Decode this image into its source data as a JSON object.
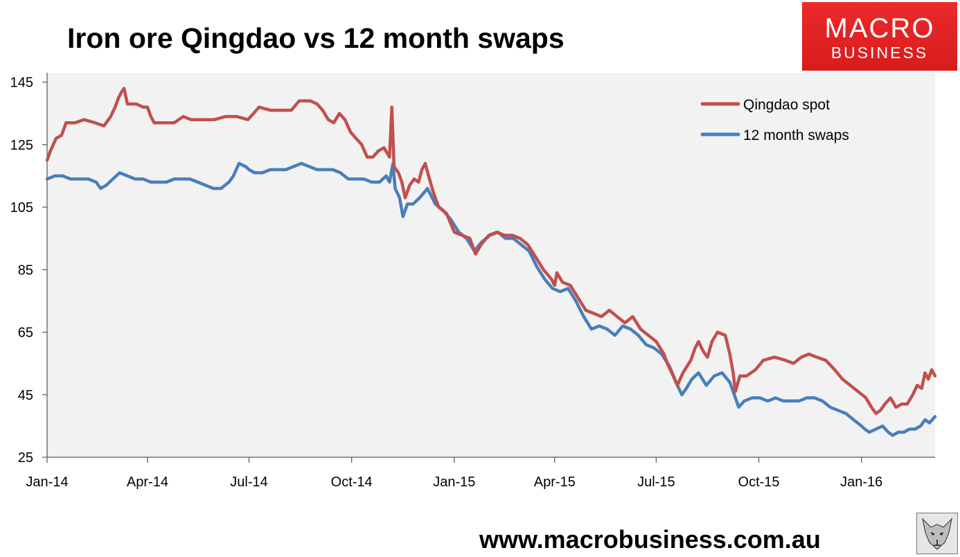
{
  "title": "Iron ore Qingdao vs 12 month swaps",
  "logo": {
    "top": "MACRO",
    "bottom": "BUSINESS",
    "color": "#e02323"
  },
  "website": "www.macrobusiness.com.au",
  "wolf_icon": "wolf-face-icon",
  "chart_data": {
    "type": "line",
    "title": "Iron ore Qingdao vs 12 month swaps",
    "xlabel": "",
    "ylabel": "",
    "x_start": "2014-01-01",
    "x_end": "2016-03-07",
    "x_ticks": [
      "Jan-14",
      "Apr-14",
      "Jul-14",
      "Oct-14",
      "Jan-15",
      "Apr-15",
      "Jul-15",
      "Oct-15",
      "Jan-16"
    ],
    "x_tick_dates": [
      "2014-01-01",
      "2014-04-01",
      "2014-07-01",
      "2014-10-01",
      "2015-01-01",
      "2015-04-01",
      "2015-07-01",
      "2015-10-01",
      "2016-01-01"
    ],
    "y_ticks": [
      25,
      45,
      65,
      85,
      105,
      125,
      145
    ],
    "ylim": [
      25,
      148
    ],
    "grid": false,
    "legend_position": "top-right",
    "background": "#f2f2f2",
    "series": [
      {
        "name": "Qingdao spot",
        "color": "#c0504d",
        "points": [
          [
            "2014-01-01",
            120
          ],
          [
            "2014-01-04",
            123
          ],
          [
            "2014-01-09",
            127
          ],
          [
            "2014-01-14",
            128
          ],
          [
            "2014-01-18",
            132
          ],
          [
            "2014-01-26",
            132
          ],
          [
            "2014-02-03",
            133
          ],
          [
            "2014-02-13",
            132
          ],
          [
            "2014-02-21",
            131
          ],
          [
            "2014-02-27",
            134
          ],
          [
            "2014-03-03",
            137
          ],
          [
            "2014-03-06",
            140
          ],
          [
            "2014-03-09",
            142
          ],
          [
            "2014-03-11",
            143
          ],
          [
            "2014-03-14",
            138
          ],
          [
            "2014-03-22",
            138
          ],
          [
            "2014-03-28",
            137
          ],
          [
            "2014-04-01",
            137
          ],
          [
            "2014-04-04",
            134
          ],
          [
            "2014-04-07",
            132
          ],
          [
            "2014-04-15",
            132
          ],
          [
            "2014-04-25",
            132
          ],
          [
            "2014-05-03",
            134
          ],
          [
            "2014-05-10",
            133
          ],
          [
            "2014-05-20",
            133
          ],
          [
            "2014-05-31",
            133
          ],
          [
            "2014-06-10",
            134
          ],
          [
            "2014-06-20",
            134
          ],
          [
            "2014-06-30",
            133
          ],
          [
            "2014-07-05",
            135
          ],
          [
            "2014-07-10",
            137
          ],
          [
            "2014-07-20",
            136
          ],
          [
            "2014-07-31",
            136
          ],
          [
            "2014-08-08",
            136
          ],
          [
            "2014-08-15",
            139
          ],
          [
            "2014-08-25",
            139
          ],
          [
            "2014-08-31",
            138
          ],
          [
            "2014-09-05",
            136
          ],
          [
            "2014-09-10",
            133
          ],
          [
            "2014-09-15",
            132
          ],
          [
            "2014-09-20",
            135
          ],
          [
            "2014-09-25",
            133
          ],
          [
            "2014-09-30",
            129
          ],
          [
            "2014-10-05",
            127
          ],
          [
            "2014-10-10",
            125
          ],
          [
            "2014-10-15",
            121
          ],
          [
            "2014-10-20",
            121
          ],
          [
            "2014-10-25",
            123
          ],
          [
            "2014-10-30",
            124
          ],
          [
            "2014-11-04",
            121
          ],
          [
            "2014-11-06",
            137
          ],
          [
            "2014-11-08",
            118
          ],
          [
            "2014-11-12",
            116
          ],
          [
            "2014-11-15",
            113
          ],
          [
            "2014-11-18",
            108
          ],
          [
            "2014-11-22",
            112
          ],
          [
            "2014-11-26",
            114
          ],
          [
            "2014-11-30",
            113
          ],
          [
            "2014-12-03",
            117
          ],
          [
            "2014-12-06",
            119
          ],
          [
            "2014-12-09",
            115
          ],
          [
            "2014-12-13",
            110
          ],
          [
            "2014-12-18",
            105
          ],
          [
            "2014-12-25",
            103
          ],
          [
            "2015-01-01",
            97
          ],
          [
            "2015-01-08",
            96
          ],
          [
            "2015-01-15",
            95
          ],
          [
            "2015-01-20",
            90
          ],
          [
            "2015-01-25",
            93
          ],
          [
            "2015-02-01",
            96
          ],
          [
            "2015-02-08",
            97
          ],
          [
            "2015-02-15",
            96
          ],
          [
            "2015-02-22",
            96
          ],
          [
            "2015-03-01",
            95
          ],
          [
            "2015-03-08",
            93
          ],
          [
            "2015-03-15",
            89
          ],
          [
            "2015-03-22",
            85
          ],
          [
            "2015-03-29",
            82
          ],
          [
            "2015-04-01",
            80
          ],
          [
            "2015-04-03",
            84
          ],
          [
            "2015-04-08",
            81
          ],
          [
            "2015-04-15",
            80
          ],
          [
            "2015-04-22",
            76
          ],
          [
            "2015-04-29",
            72
          ],
          [
            "2015-05-06",
            71
          ],
          [
            "2015-05-13",
            70
          ],
          [
            "2015-05-20",
            72
          ],
          [
            "2015-05-27",
            70
          ],
          [
            "2015-06-03",
            68
          ],
          [
            "2015-06-10",
            70
          ],
          [
            "2015-06-17",
            66
          ],
          [
            "2015-06-24",
            64
          ],
          [
            "2015-07-01",
            62
          ],
          [
            "2015-07-08",
            58
          ],
          [
            "2015-07-11",
            55
          ],
          [
            "2015-07-15",
            52
          ],
          [
            "2015-07-20",
            48
          ],
          [
            "2015-07-25",
            52
          ],
          [
            "2015-08-01",
            56
          ],
          [
            "2015-08-05",
            60
          ],
          [
            "2015-08-08",
            62
          ],
          [
            "2015-08-12",
            59
          ],
          [
            "2015-08-16",
            57
          ],
          [
            "2015-08-20",
            62
          ],
          [
            "2015-08-25",
            65
          ],
          [
            "2015-09-01",
            64
          ],
          [
            "2015-09-05",
            58
          ],
          [
            "2015-09-08",
            52
          ],
          [
            "2015-09-10",
            46
          ],
          [
            "2015-09-14",
            51
          ],
          [
            "2015-09-20",
            51
          ],
          [
            "2015-09-28",
            53
          ],
          [
            "2015-10-05",
            56
          ],
          [
            "2015-10-15",
            57
          ],
          [
            "2015-10-25",
            56
          ],
          [
            "2015-11-01",
            55
          ],
          [
            "2015-11-08",
            57
          ],
          [
            "2015-11-15",
            58
          ],
          [
            "2015-11-22",
            57
          ],
          [
            "2015-11-30",
            56
          ],
          [
            "2015-12-08",
            53
          ],
          [
            "2015-12-15",
            50
          ],
          [
            "2015-12-22",
            48
          ],
          [
            "2015-12-29",
            46
          ],
          [
            "2016-01-05",
            44
          ],
          [
            "2016-01-10",
            41
          ],
          [
            "2016-01-14",
            39
          ],
          [
            "2016-01-18",
            40
          ],
          [
            "2016-01-22",
            42
          ],
          [
            "2016-01-27",
            44
          ],
          [
            "2016-02-01",
            41
          ],
          [
            "2016-02-06",
            42
          ],
          [
            "2016-02-11",
            42
          ],
          [
            "2016-02-16",
            45
          ],
          [
            "2016-02-20",
            48
          ],
          [
            "2016-02-24",
            47
          ],
          [
            "2016-02-27",
            52
          ],
          [
            "2016-03-01",
            50
          ],
          [
            "2016-03-04",
            53
          ],
          [
            "2016-03-07",
            51
          ]
        ]
      },
      {
        "name": "12 month swaps",
        "color": "#4a7ebb",
        "points": [
          [
            "2014-01-01",
            114
          ],
          [
            "2014-01-08",
            115
          ],
          [
            "2014-01-15",
            115
          ],
          [
            "2014-01-22",
            114
          ],
          [
            "2014-01-31",
            114
          ],
          [
            "2014-02-07",
            114
          ],
          [
            "2014-02-14",
            113
          ],
          [
            "2014-02-18",
            111
          ],
          [
            "2014-02-23",
            112
          ],
          [
            "2014-03-01",
            114
          ],
          [
            "2014-03-07",
            116
          ],
          [
            "2014-03-14",
            115
          ],
          [
            "2014-03-21",
            114
          ],
          [
            "2014-03-28",
            114
          ],
          [
            "2014-04-04",
            113
          ],
          [
            "2014-04-11",
            113
          ],
          [
            "2014-04-18",
            113
          ],
          [
            "2014-04-25",
            114
          ],
          [
            "2014-05-02",
            114
          ],
          [
            "2014-05-09",
            114
          ],
          [
            "2014-05-16",
            113
          ],
          [
            "2014-05-23",
            112
          ],
          [
            "2014-05-30",
            111
          ],
          [
            "2014-06-06",
            111
          ],
          [
            "2014-06-13",
            113
          ],
          [
            "2014-06-17",
            115
          ],
          [
            "2014-06-22",
            119
          ],
          [
            "2014-06-28",
            118
          ],
          [
            "2014-07-01",
            117
          ],
          [
            "2014-07-06",
            116
          ],
          [
            "2014-07-13",
            116
          ],
          [
            "2014-07-20",
            117
          ],
          [
            "2014-07-27",
            117
          ],
          [
            "2014-08-03",
            117
          ],
          [
            "2014-08-10",
            118
          ],
          [
            "2014-08-17",
            119
          ],
          [
            "2014-08-24",
            118
          ],
          [
            "2014-08-31",
            117
          ],
          [
            "2014-09-07",
            117
          ],
          [
            "2014-09-14",
            117
          ],
          [
            "2014-09-21",
            116
          ],
          [
            "2014-09-28",
            114
          ],
          [
            "2014-10-05",
            114
          ],
          [
            "2014-10-12",
            114
          ],
          [
            "2014-10-19",
            113
          ],
          [
            "2014-10-26",
            113
          ],
          [
            "2014-11-01",
            115
          ],
          [
            "2014-11-04",
            113
          ],
          [
            "2014-11-07",
            119
          ],
          [
            "2014-11-09",
            111
          ],
          [
            "2014-11-13",
            108
          ],
          [
            "2014-11-16",
            102
          ],
          [
            "2014-11-20",
            106
          ],
          [
            "2014-11-25",
            106
          ],
          [
            "2014-12-01",
            108
          ],
          [
            "2014-12-08",
            111
          ],
          [
            "2014-12-15",
            106
          ],
          [
            "2014-12-22",
            104
          ],
          [
            "2014-12-29",
            101
          ],
          [
            "2015-01-05",
            97
          ],
          [
            "2015-01-12",
            95
          ],
          [
            "2015-01-19",
            91
          ],
          [
            "2015-01-26",
            94
          ],
          [
            "2015-02-02",
            96
          ],
          [
            "2015-02-09",
            97
          ],
          [
            "2015-02-16",
            95
          ],
          [
            "2015-02-23",
            95
          ],
          [
            "2015-03-02",
            93
          ],
          [
            "2015-03-09",
            91
          ],
          [
            "2015-03-16",
            86
          ],
          [
            "2015-03-23",
            82
          ],
          [
            "2015-03-30",
            79
          ],
          [
            "2015-04-06",
            78
          ],
          [
            "2015-04-13",
            79
          ],
          [
            "2015-04-20",
            75
          ],
          [
            "2015-04-27",
            70
          ],
          [
            "2015-05-04",
            66
          ],
          [
            "2015-05-11",
            67
          ],
          [
            "2015-05-18",
            66
          ],
          [
            "2015-05-25",
            64
          ],
          [
            "2015-06-01",
            67
          ],
          [
            "2015-06-08",
            66
          ],
          [
            "2015-06-15",
            64
          ],
          [
            "2015-06-22",
            61
          ],
          [
            "2015-06-29",
            60
          ],
          [
            "2015-07-06",
            58
          ],
          [
            "2015-07-13",
            54
          ],
          [
            "2015-07-20",
            48
          ],
          [
            "2015-07-24",
            45
          ],
          [
            "2015-07-28",
            47
          ],
          [
            "2015-08-02",
            50
          ],
          [
            "2015-08-08",
            52
          ],
          [
            "2015-08-15",
            48
          ],
          [
            "2015-08-22",
            51
          ],
          [
            "2015-08-29",
            52
          ],
          [
            "2015-09-05",
            49
          ],
          [
            "2015-09-10",
            44
          ],
          [
            "2015-09-13",
            41
          ],
          [
            "2015-09-18",
            43
          ],
          [
            "2015-09-25",
            44
          ],
          [
            "2015-10-02",
            44
          ],
          [
            "2015-10-09",
            43
          ],
          [
            "2015-10-16",
            44
          ],
          [
            "2015-10-23",
            43
          ],
          [
            "2015-10-30",
            43
          ],
          [
            "2015-11-06",
            43
          ],
          [
            "2015-11-13",
            44
          ],
          [
            "2015-11-20",
            44
          ],
          [
            "2015-11-27",
            43
          ],
          [
            "2015-12-04",
            41
          ],
          [
            "2015-12-11",
            40
          ],
          [
            "2015-12-18",
            39
          ],
          [
            "2015-12-25",
            37
          ],
          [
            "2016-01-01",
            35
          ],
          [
            "2016-01-04",
            34
          ],
          [
            "2016-01-08",
            33
          ],
          [
            "2016-01-14",
            34
          ],
          [
            "2016-01-20",
            35
          ],
          [
            "2016-01-25",
            33
          ],
          [
            "2016-01-29",
            32
          ],
          [
            "2016-02-03",
            33
          ],
          [
            "2016-02-08",
            33
          ],
          [
            "2016-02-13",
            34
          ],
          [
            "2016-02-18",
            34
          ],
          [
            "2016-02-23",
            35
          ],
          [
            "2016-02-27",
            37
          ],
          [
            "2016-03-02",
            36
          ],
          [
            "2016-03-07",
            38
          ]
        ]
      }
    ]
  }
}
